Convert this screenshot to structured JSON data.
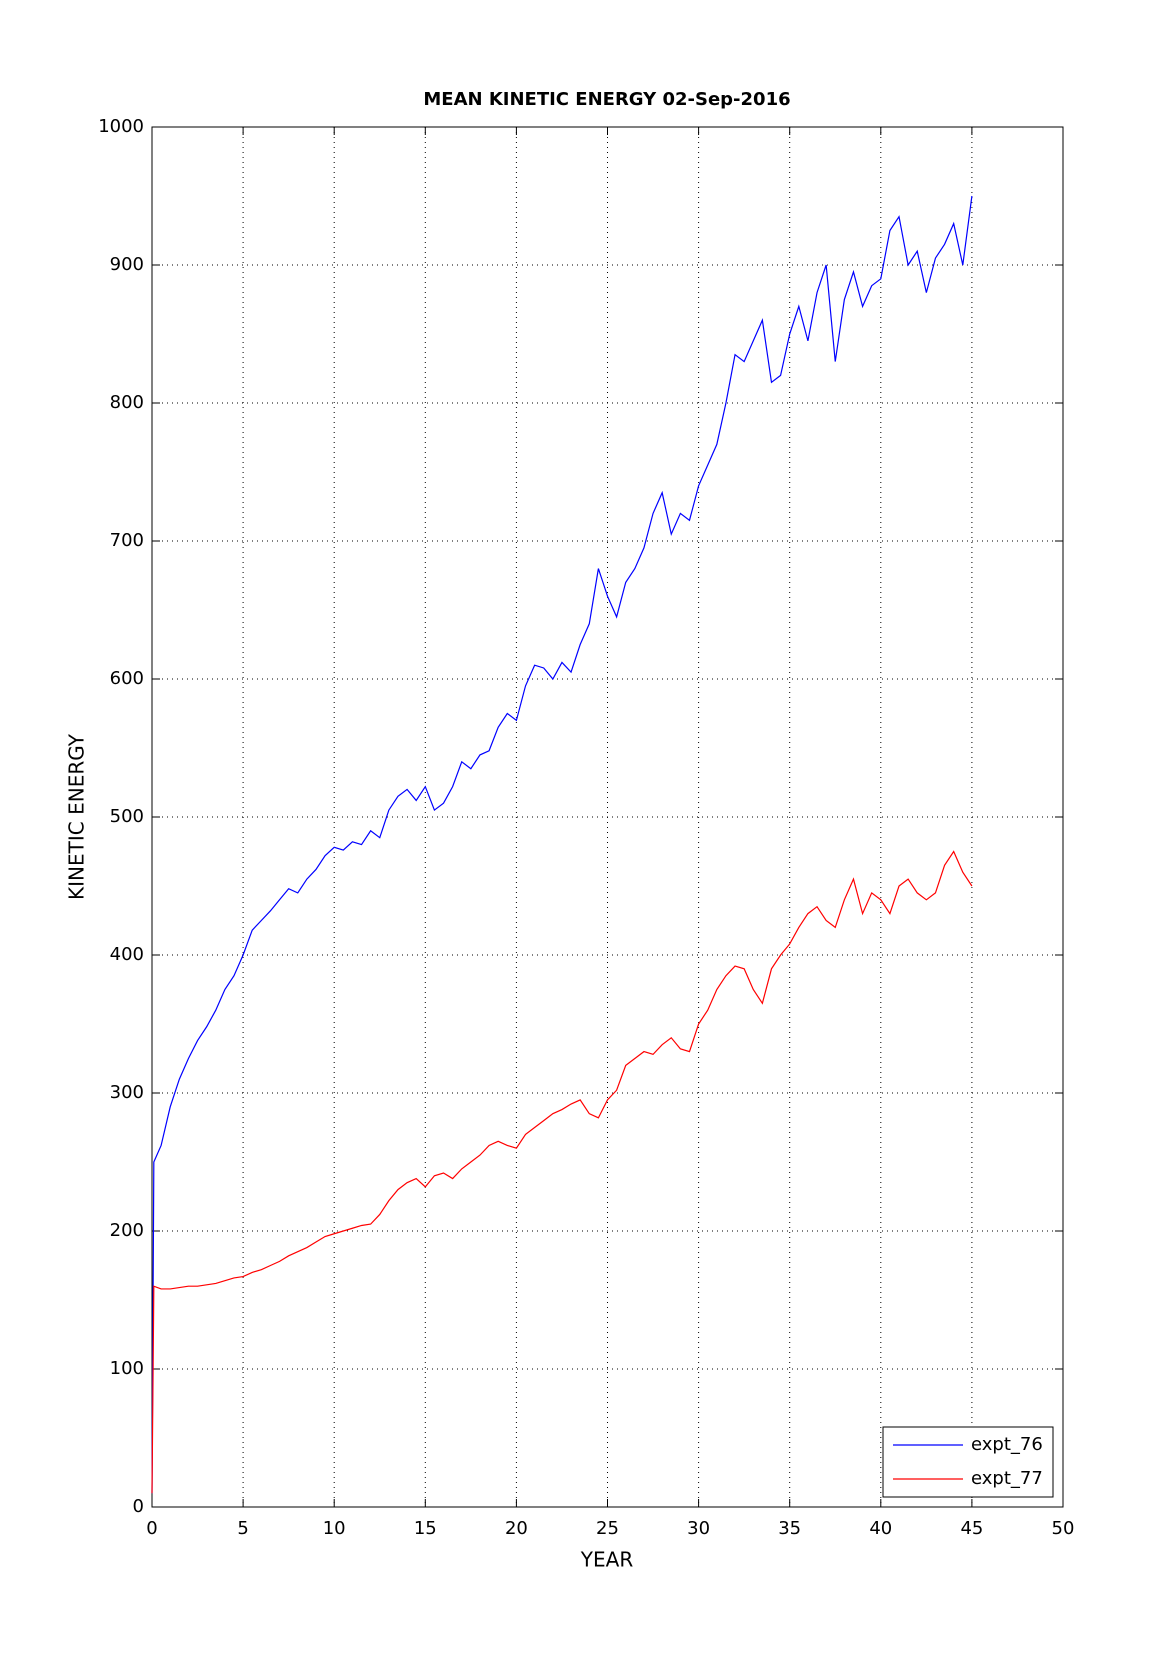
{
  "chart_data": {
    "type": "line",
    "title": "MEAN KINETIC ENERGY 02-Sep-2016",
    "x_label": "YEAR",
    "y_label": "KINETIC ENERGY",
    "x": [
      0,
      0.1,
      0.5,
      1,
      1.5,
      2,
      2.5,
      3,
      3.5,
      4,
      4.5,
      5,
      5.5,
      6,
      6.5,
      7,
      7.5,
      8,
      8.5,
      9,
      9.5,
      10,
      10.5,
      11,
      11.5,
      12,
      12.5,
      13,
      13.5,
      14,
      14.5,
      15,
      15.5,
      16,
      16.5,
      17,
      17.5,
      18,
      18.5,
      19,
      19.5,
      20,
      20.5,
      21,
      21.5,
      22,
      22.5,
      23,
      23.5,
      24,
      24.5,
      25,
      25.5,
      26,
      26.5,
      27,
      27.5,
      28,
      28.5,
      29,
      29.5,
      30,
      30.5,
      31,
      31.5,
      32,
      32.5,
      33,
      33.5,
      34,
      34.5,
      35,
      35.5,
      36,
      36.5,
      37,
      37.5,
      38,
      38.5,
      39,
      39.5,
      40,
      40.5,
      41,
      41.5,
      42,
      42.5,
      43,
      43.5,
      44,
      44.5,
      45
    ],
    "series": [
      {
        "name": "expt_76",
        "color": "#0000ff",
        "values": [
          10,
          250,
          262,
          290,
          310,
          325,
          338,
          348,
          360,
          375,
          385,
          400,
          418,
          425,
          432,
          440,
          448,
          445,
          455,
          462,
          472,
          478,
          476,
          482,
          480,
          490,
          485,
          505,
          515,
          520,
          512,
          522,
          505,
          510,
          522,
          540,
          535,
          545,
          548,
          565,
          575,
          570,
          595,
          610,
          608,
          600,
          612,
          605,
          625,
          640,
          680,
          660,
          645,
          670,
          680,
          695,
          720,
          735,
          705,
          720,
          715,
          740,
          755,
          770,
          800,
          835,
          830,
          845,
          860,
          815,
          820,
          850,
          870,
          845,
          880,
          900,
          830,
          875,
          895,
          870,
          885,
          890,
          925,
          935,
          900,
          910,
          880,
          905,
          915,
          930,
          900,
          950
        ]
      },
      {
        "name": "expt_77",
        "color": "#ff0000",
        "values": [
          10,
          160,
          158,
          158,
          159,
          160,
          160,
          161,
          162,
          164,
          166,
          167,
          170,
          172,
          175,
          178,
          182,
          185,
          188,
          192,
          196,
          198,
          200,
          202,
          204,
          205,
          212,
          222,
          230,
          235,
          238,
          232,
          240,
          242,
          238,
          245,
          250,
          255,
          262,
          265,
          262,
          260,
          270,
          275,
          280,
          285,
          288,
          292,
          295,
          285,
          282,
          295,
          302,
          320,
          325,
          330,
          328,
          335,
          340,
          332,
          330,
          350,
          360,
          375,
          385,
          392,
          390,
          375,
          365,
          390,
          400,
          408,
          420,
          430,
          435,
          425,
          420,
          440,
          455,
          430,
          445,
          440,
          430,
          450,
          455,
          445,
          440,
          445,
          465,
          475,
          460,
          450
        ]
      }
    ],
    "xlim": [
      0,
      50
    ],
    "xticks": [
      0,
      5,
      10,
      15,
      20,
      25,
      30,
      35,
      40,
      45,
      50
    ],
    "ylim": [
      0,
      1000
    ],
    "yticks": [
      0,
      100,
      200,
      300,
      400,
      500,
      600,
      700,
      800,
      900,
      1000
    ],
    "grid": true,
    "legend": "lower right"
  }
}
